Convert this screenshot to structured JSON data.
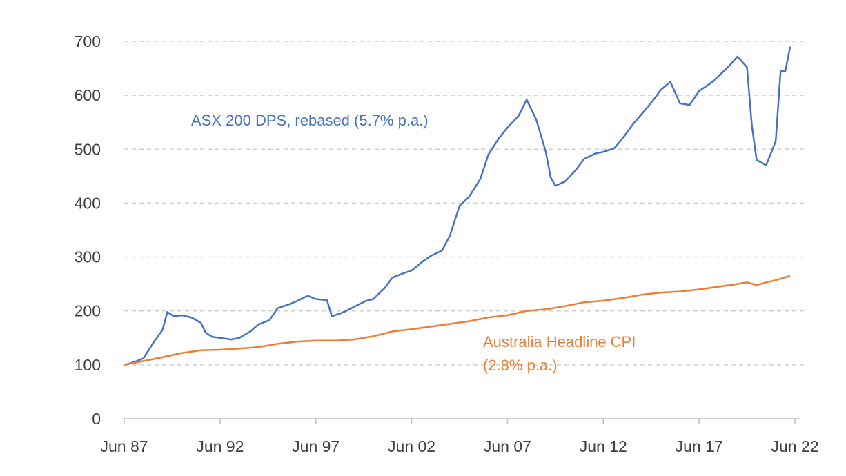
{
  "chart_data": {
    "type": "line",
    "title": "",
    "xlabel": "",
    "ylabel": "",
    "ylim": [
      0,
      700
    ],
    "xlim": [
      "1987-06",
      "2022-06"
    ],
    "y_ticks": [
      0,
      100,
      200,
      300,
      400,
      500,
      600,
      700
    ],
    "x_ticks": [
      {
        "x": "1987-06",
        "label": "Jun 87"
      },
      {
        "x": "1992-06",
        "label": "Jun 92"
      },
      {
        "x": "1997-06",
        "label": "Jun 97"
      },
      {
        "x": "2002-06",
        "label": "Jun 02"
      },
      {
        "x": "2007-06",
        "label": "Jun 07"
      },
      {
        "x": "2012-06",
        "label": "Jun 12"
      },
      {
        "x": "2017-06",
        "label": "Jun 17"
      },
      {
        "x": "2022-06",
        "label": "Jun 22"
      }
    ],
    "grid": {
      "horizontal": true,
      "style": "dashed"
    },
    "legend": "none",
    "series": [
      {
        "name": "ASX 200 DPS, rebased (5.7% p.a.)",
        "label_line1": "ASX 200 DPS, rebased (5.7% p.a.)",
        "color": "#4472C4",
        "points": [
          [
            "1987-06",
            100
          ],
          [
            "1987-12",
            105
          ],
          [
            "1988-06",
            112
          ],
          [
            "1988-12",
            140
          ],
          [
            "1989-06",
            165
          ],
          [
            "1989-09",
            198
          ],
          [
            "1990-01",
            190
          ],
          [
            "1990-06",
            192
          ],
          [
            "1990-12",
            188
          ],
          [
            "1991-06",
            178
          ],
          [
            "1991-09",
            160
          ],
          [
            "1992-01",
            152
          ],
          [
            "1992-06",
            150
          ],
          [
            "1993-01",
            147
          ],
          [
            "1993-06",
            150
          ],
          [
            "1994-01",
            162
          ],
          [
            "1994-06",
            175
          ],
          [
            "1995-01",
            183
          ],
          [
            "1995-06",
            205
          ],
          [
            "1996-01",
            212
          ],
          [
            "1996-06",
            218
          ],
          [
            "1997-01",
            228
          ],
          [
            "1997-06",
            222
          ],
          [
            "1998-01",
            220
          ],
          [
            "1998-04",
            190
          ],
          [
            "1998-09",
            195
          ],
          [
            "1999-01",
            200
          ],
          [
            "1999-06",
            208
          ],
          [
            "2000-01",
            218
          ],
          [
            "2000-06",
            222
          ],
          [
            "2001-01",
            242
          ],
          [
            "2001-06",
            262
          ],
          [
            "2002-01",
            270
          ],
          [
            "2002-06",
            275
          ],
          [
            "2003-01",
            292
          ],
          [
            "2003-06",
            302
          ],
          [
            "2004-01",
            312
          ],
          [
            "2004-06",
            340
          ],
          [
            "2004-12",
            395
          ],
          [
            "2005-06",
            412
          ],
          [
            "2006-01",
            445
          ],
          [
            "2006-06",
            490
          ],
          [
            "2007-01",
            522
          ],
          [
            "2007-06",
            540
          ],
          [
            "2008-01",
            562
          ],
          [
            "2008-06",
            592
          ],
          [
            "2008-12",
            555
          ],
          [
            "2009-06",
            495
          ],
          [
            "2009-09",
            448
          ],
          [
            "2009-12",
            432
          ],
          [
            "2010-06",
            440
          ],
          [
            "2011-01",
            462
          ],
          [
            "2011-06",
            482
          ],
          [
            "2012-01",
            492
          ],
          [
            "2012-06",
            495
          ],
          [
            "2013-01",
            502
          ],
          [
            "2013-06",
            520
          ],
          [
            "2014-01",
            548
          ],
          [
            "2014-06",
            565
          ],
          [
            "2015-01",
            590
          ],
          [
            "2015-06",
            610
          ],
          [
            "2015-12",
            625
          ],
          [
            "2016-06",
            585
          ],
          [
            "2016-12",
            582
          ],
          [
            "2017-06",
            608
          ],
          [
            "2018-01",
            622
          ],
          [
            "2018-06",
            635
          ],
          [
            "2019-01",
            655
          ],
          [
            "2019-06",
            672
          ],
          [
            "2019-12",
            652
          ],
          [
            "2020-03",
            545
          ],
          [
            "2020-06",
            480
          ],
          [
            "2020-12",
            470
          ],
          [
            "2021-06",
            515
          ],
          [
            "2021-09",
            645
          ],
          [
            "2021-12",
            645
          ],
          [
            "2022-03",
            690
          ]
        ]
      },
      {
        "name": "Australia Headline CPI (2.8% p.a.)",
        "label_line1": "Australia Headline CPI",
        "label_line2": "(2.8% p.a.)",
        "color": "#ED7D31",
        "points": [
          [
            "1987-06",
            100
          ],
          [
            "1988-06",
            107
          ],
          [
            "1989-06",
            114
          ],
          [
            "1990-06",
            122
          ],
          [
            "1991-06",
            127
          ],
          [
            "1992-06",
            128
          ],
          [
            "1993-06",
            130
          ],
          [
            "1994-06",
            133
          ],
          [
            "1995-06",
            139
          ],
          [
            "1996-06",
            143
          ],
          [
            "1997-06",
            145
          ],
          [
            "1998-06",
            145
          ],
          [
            "1999-06",
            147
          ],
          [
            "2000-06",
            153
          ],
          [
            "2001-06",
            162
          ],
          [
            "2002-06",
            166
          ],
          [
            "2003-06",
            171
          ],
          [
            "2004-06",
            176
          ],
          [
            "2005-06",
            181
          ],
          [
            "2006-06",
            188
          ],
          [
            "2007-06",
            192
          ],
          [
            "2008-06",
            200
          ],
          [
            "2009-06",
            203
          ],
          [
            "2010-06",
            209
          ],
          [
            "2011-06",
            216
          ],
          [
            "2012-06",
            219
          ],
          [
            "2013-06",
            224
          ],
          [
            "2014-06",
            230
          ],
          [
            "2015-06",
            234
          ],
          [
            "2016-06",
            236
          ],
          [
            "2017-06",
            240
          ],
          [
            "2018-06",
            245
          ],
          [
            "2019-06",
            250
          ],
          [
            "2019-12",
            253
          ],
          [
            "2020-06",
            248
          ],
          [
            "2020-12",
            253
          ],
          [
            "2021-06",
            257
          ],
          [
            "2022-03",
            265
          ]
        ]
      }
    ]
  }
}
